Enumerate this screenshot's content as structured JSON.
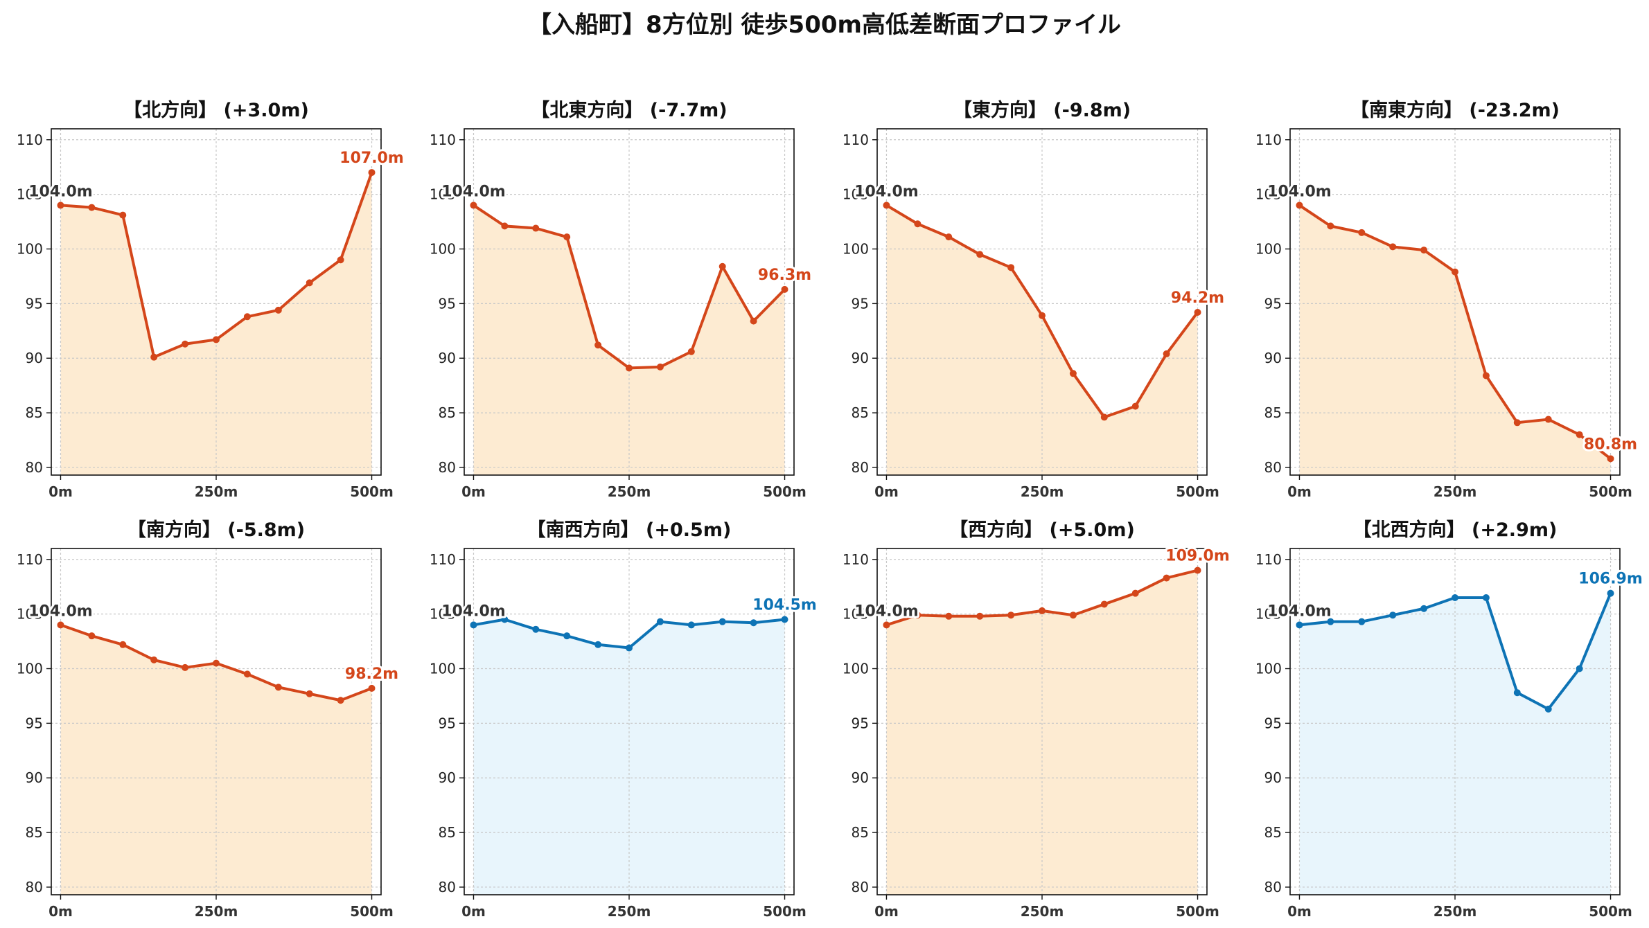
{
  "title": "【入船町】8方位別 徒歩500m高低差断面プロファイル",
  "colors": {
    "down_line": "#d4461a",
    "down_fill": "#fdebd2",
    "up_line": "#0d73b5",
    "up_fill": "#e8f5fc",
    "start_label": "#333333",
    "grid": "#c8c8c8"
  },
  "chart_data": [
    {
      "type": "area",
      "title": "【北方向】 (+3.0m)",
      "x": [
        0,
        50,
        100,
        150,
        200,
        250,
        300,
        350,
        400,
        450,
        500
      ],
      "values": [
        104.0,
        103.8,
        103.1,
        90.1,
        91.3,
        91.7,
        93.8,
        94.4,
        96.9,
        99.0,
        107.0
      ],
      "xticks": [
        "0m",
        "250m",
        "500m"
      ],
      "yticks": [
        80,
        85,
        90,
        95,
        100,
        105,
        110
      ],
      "ylim": [
        79.3,
        111.0
      ],
      "xlim": [
        -15,
        515
      ],
      "start_label": "104.0m",
      "end_label": "107.0m",
      "scheme": "down",
      "grid": true
    },
    {
      "type": "area",
      "title": "【北東方向】 (-7.7m)",
      "x": [
        0,
        50,
        100,
        150,
        200,
        250,
        300,
        350,
        400,
        450,
        500
      ],
      "values": [
        104.0,
        102.1,
        101.9,
        101.1,
        91.2,
        89.1,
        89.2,
        90.6,
        98.4,
        93.4,
        96.3
      ],
      "xticks": [
        "0m",
        "250m",
        "500m"
      ],
      "yticks": [
        80,
        85,
        90,
        95,
        100,
        105,
        110
      ],
      "ylim": [
        79.3,
        111.0
      ],
      "xlim": [
        -15,
        515
      ],
      "start_label": "104.0m",
      "end_label": "96.3m",
      "scheme": "down",
      "grid": true
    },
    {
      "type": "area",
      "title": "【東方向】 (-9.8m)",
      "x": [
        0,
        50,
        100,
        150,
        200,
        250,
        300,
        350,
        400,
        450,
        500
      ],
      "values": [
        104.0,
        102.3,
        101.1,
        99.5,
        98.3,
        93.9,
        88.6,
        84.6,
        85.6,
        90.4,
        94.2
      ],
      "xticks": [
        "0m",
        "250m",
        "500m"
      ],
      "yticks": [
        80,
        85,
        90,
        95,
        100,
        105,
        110
      ],
      "ylim": [
        79.3,
        111.0
      ],
      "xlim": [
        -15,
        515
      ],
      "start_label": "104.0m",
      "end_label": "94.2m",
      "scheme": "down",
      "grid": true
    },
    {
      "type": "area",
      "title": "【南東方向】 (-23.2m)",
      "x": [
        0,
        50,
        100,
        150,
        200,
        250,
        300,
        350,
        400,
        450,
        500
      ],
      "values": [
        104.0,
        102.1,
        101.5,
        100.2,
        99.9,
        97.9,
        88.4,
        84.1,
        84.4,
        83.0,
        80.8
      ],
      "xticks": [
        "0m",
        "250m",
        "500m"
      ],
      "yticks": [
        80,
        85,
        90,
        95,
        100,
        105,
        110
      ],
      "ylim": [
        79.3,
        111.0
      ],
      "xlim": [
        -15,
        515
      ],
      "start_label": "104.0m",
      "end_label": "80.8m",
      "scheme": "down",
      "grid": true
    },
    {
      "type": "area",
      "title": "【南方向】 (-5.8m)",
      "x": [
        0,
        50,
        100,
        150,
        200,
        250,
        300,
        350,
        400,
        450,
        500
      ],
      "values": [
        104.0,
        103.0,
        102.2,
        100.8,
        100.1,
        100.5,
        99.5,
        98.3,
        97.7,
        97.1,
        98.2
      ],
      "xticks": [
        "0m",
        "250m",
        "500m"
      ],
      "yticks": [
        80,
        85,
        90,
        95,
        100,
        105,
        110
      ],
      "ylim": [
        79.3,
        111.0
      ],
      "xlim": [
        -15,
        515
      ],
      "start_label": "104.0m",
      "end_label": "98.2m",
      "scheme": "down",
      "grid": true
    },
    {
      "type": "area",
      "title": "【南西方向】 (+0.5m)",
      "x": [
        0,
        50,
        100,
        150,
        200,
        250,
        300,
        350,
        400,
        450,
        500
      ],
      "values": [
        104.0,
        104.5,
        103.6,
        103.0,
        102.2,
        101.9,
        104.3,
        104.0,
        104.3,
        104.2,
        104.5
      ],
      "xticks": [
        "0m",
        "250m",
        "500m"
      ],
      "yticks": [
        80,
        85,
        90,
        95,
        100,
        105,
        110
      ],
      "ylim": [
        79.3,
        111.0
      ],
      "xlim": [
        -15,
        515
      ],
      "start_label": "104.0m",
      "end_label": "104.5m",
      "scheme": "up",
      "grid": true
    },
    {
      "type": "area",
      "title": "【西方向】 (+5.0m)",
      "x": [
        0,
        50,
        100,
        150,
        200,
        250,
        300,
        350,
        400,
        450,
        500
      ],
      "values": [
        104.0,
        104.9,
        104.8,
        104.8,
        104.9,
        105.3,
        104.9,
        105.9,
        106.9,
        108.3,
        109.0
      ],
      "xticks": [
        "0m",
        "250m",
        "500m"
      ],
      "yticks": [
        80,
        85,
        90,
        95,
        100,
        105,
        110
      ],
      "ylim": [
        79.3,
        111.0
      ],
      "xlim": [
        -15,
        515
      ],
      "start_label": "104.0m",
      "end_label": "109.0m",
      "scheme": "down",
      "grid": true
    },
    {
      "type": "area",
      "title": "【北西方向】 (+2.9m)",
      "x": [
        0,
        50,
        100,
        150,
        200,
        250,
        300,
        350,
        400,
        450,
        500
      ],
      "values": [
        104.0,
        104.3,
        104.3,
        104.9,
        105.5,
        106.5,
        106.5,
        97.8,
        96.3,
        100.0,
        106.9
      ],
      "xticks": [
        "0m",
        "250m",
        "500m"
      ],
      "yticks": [
        80,
        85,
        90,
        95,
        100,
        105,
        110
      ],
      "ylim": [
        79.3,
        111.0
      ],
      "xlim": [
        -15,
        515
      ],
      "start_label": "104.0m",
      "end_label": "106.9m",
      "scheme": "up",
      "grid": true
    }
  ]
}
